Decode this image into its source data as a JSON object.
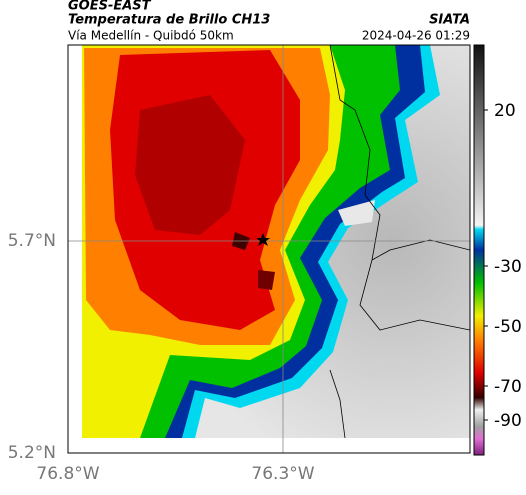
{
  "header": {
    "source": "GOES-EAST",
    "title": "Temperatura de Brillo CH13",
    "subtitle": "Vía Medellín - Quibdó 50km",
    "agency": "SIATA",
    "datetime": "2024-04-26 01:29"
  },
  "map": {
    "lat_labels": [
      "5.7°N",
      "5.2°N"
    ],
    "lon_labels": [
      "76.8°W",
      "76.3°W"
    ]
  },
  "colorbar": {
    "ticks": [
      20,
      -30,
      -50,
      -70,
      -90
    ]
  }
}
